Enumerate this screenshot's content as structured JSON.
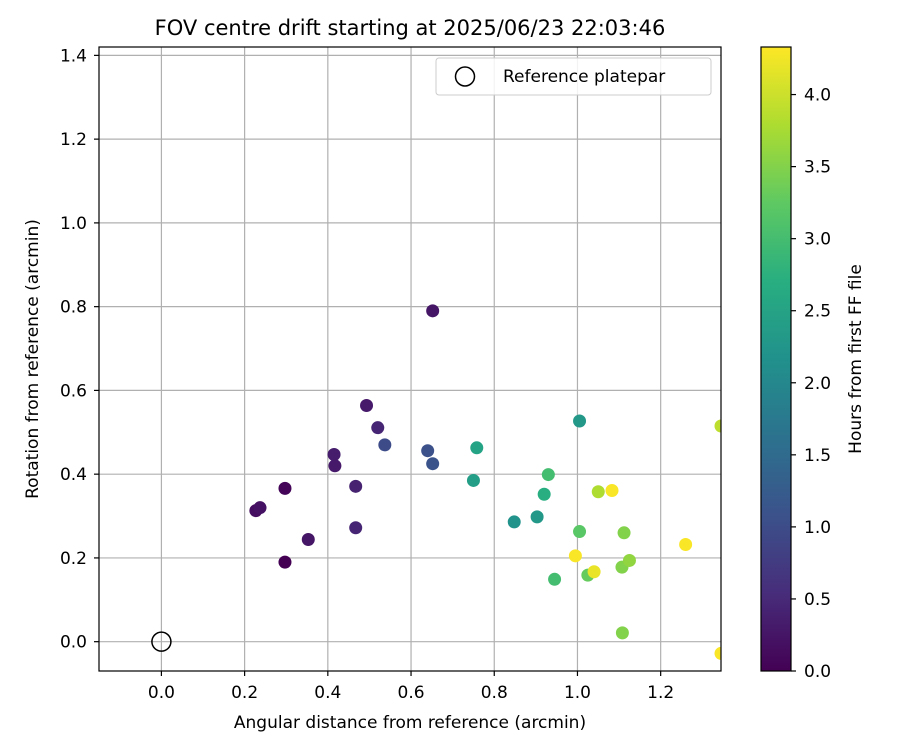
{
  "chart_data": {
    "type": "scatter",
    "title": "FOV centre drift starting at 2025/06/23 22:03:46",
    "xlabel": "Angular distance from reference (arcmin)",
    "ylabel": "Rotation from reference (arcmin)",
    "xlim": [
      -0.15,
      1.345
    ],
    "ylim": [
      -0.07,
      1.42
    ],
    "xticks": [
      "0.0",
      "0.2",
      "0.4",
      "0.6",
      "0.8",
      "1.0",
      "1.2"
    ],
    "yticks": [
      "0.0",
      "0.2",
      "0.4",
      "0.6",
      "0.8",
      "1.0",
      "1.2",
      "1.4"
    ],
    "grid": true,
    "legend": {
      "position": "top-right",
      "entries": [
        "Reference platepar"
      ]
    },
    "reference_point": {
      "x": 0.0,
      "y": 0.0,
      "marker": "open-circle"
    },
    "colorbar": {
      "label": "Hours from first FF file",
      "range": [
        0.0,
        4.33
      ],
      "colormap": "viridis",
      "ticks": [
        "0.0",
        "0.5",
        "1.0",
        "1.5",
        "2.0",
        "2.5",
        "3.0",
        "3.5",
        "4.0"
      ]
    },
    "points": [
      {
        "x": 0.227,
        "y": 0.313,
        "hours": 0.15
      },
      {
        "x": 0.237,
        "y": 0.32,
        "hours": 0.2
      },
      {
        "x": 0.297,
        "y": 0.366,
        "hours": 0.05
      },
      {
        "x": 0.297,
        "y": 0.19,
        "hours": 0.0
      },
      {
        "x": 0.353,
        "y": 0.244,
        "hours": 0.25
      },
      {
        "x": 0.415,
        "y": 0.447,
        "hours": 0.35
      },
      {
        "x": 0.417,
        "y": 0.42,
        "hours": 0.3
      },
      {
        "x": 0.467,
        "y": 0.371,
        "hours": 0.4
      },
      {
        "x": 0.467,
        "y": 0.272,
        "hours": 0.45
      },
      {
        "x": 0.493,
        "y": 0.564,
        "hours": 0.3
      },
      {
        "x": 0.52,
        "y": 0.511,
        "hours": 0.45
      },
      {
        "x": 0.537,
        "y": 0.47,
        "hours": 1.0
      },
      {
        "x": 0.64,
        "y": 0.456,
        "hours": 1.05
      },
      {
        "x": 0.652,
        "y": 0.79,
        "hours": 0.25
      },
      {
        "x": 0.652,
        "y": 0.425,
        "hours": 1.1
      },
      {
        "x": 0.75,
        "y": 0.385,
        "hours": 2.4
      },
      {
        "x": 0.758,
        "y": 0.463,
        "hours": 2.5
      },
      {
        "x": 0.848,
        "y": 0.286,
        "hours": 2.2
      },
      {
        "x": 0.903,
        "y": 0.298,
        "hours": 2.3
      },
      {
        "x": 0.92,
        "y": 0.352,
        "hours": 2.7
      },
      {
        "x": 0.93,
        "y": 0.399,
        "hours": 3.0
      },
      {
        "x": 0.945,
        "y": 0.149,
        "hours": 3.0
      },
      {
        "x": 0.995,
        "y": 0.205,
        "hours": 4.3
      },
      {
        "x": 1.005,
        "y": 0.527,
        "hours": 2.3
      },
      {
        "x": 1.005,
        "y": 0.263,
        "hours": 3.2
      },
      {
        "x": 1.025,
        "y": 0.159,
        "hours": 3.3
      },
      {
        "x": 1.04,
        "y": 0.167,
        "hours": 4.2
      },
      {
        "x": 1.05,
        "y": 0.358,
        "hours": 3.8
      },
      {
        "x": 1.083,
        "y": 0.361,
        "hours": 4.3
      },
      {
        "x": 1.107,
        "y": 0.178,
        "hours": 3.5
      },
      {
        "x": 1.108,
        "y": 0.021,
        "hours": 3.5
      },
      {
        "x": 1.112,
        "y": 0.26,
        "hours": 3.5
      },
      {
        "x": 1.125,
        "y": 0.194,
        "hours": 3.6
      },
      {
        "x": 1.26,
        "y": 0.232,
        "hours": 4.3
      },
      {
        "x": 1.345,
        "y": 0.515,
        "hours": 3.9
      },
      {
        "x": 1.345,
        "y": -0.028,
        "hours": 4.3
      }
    ]
  }
}
